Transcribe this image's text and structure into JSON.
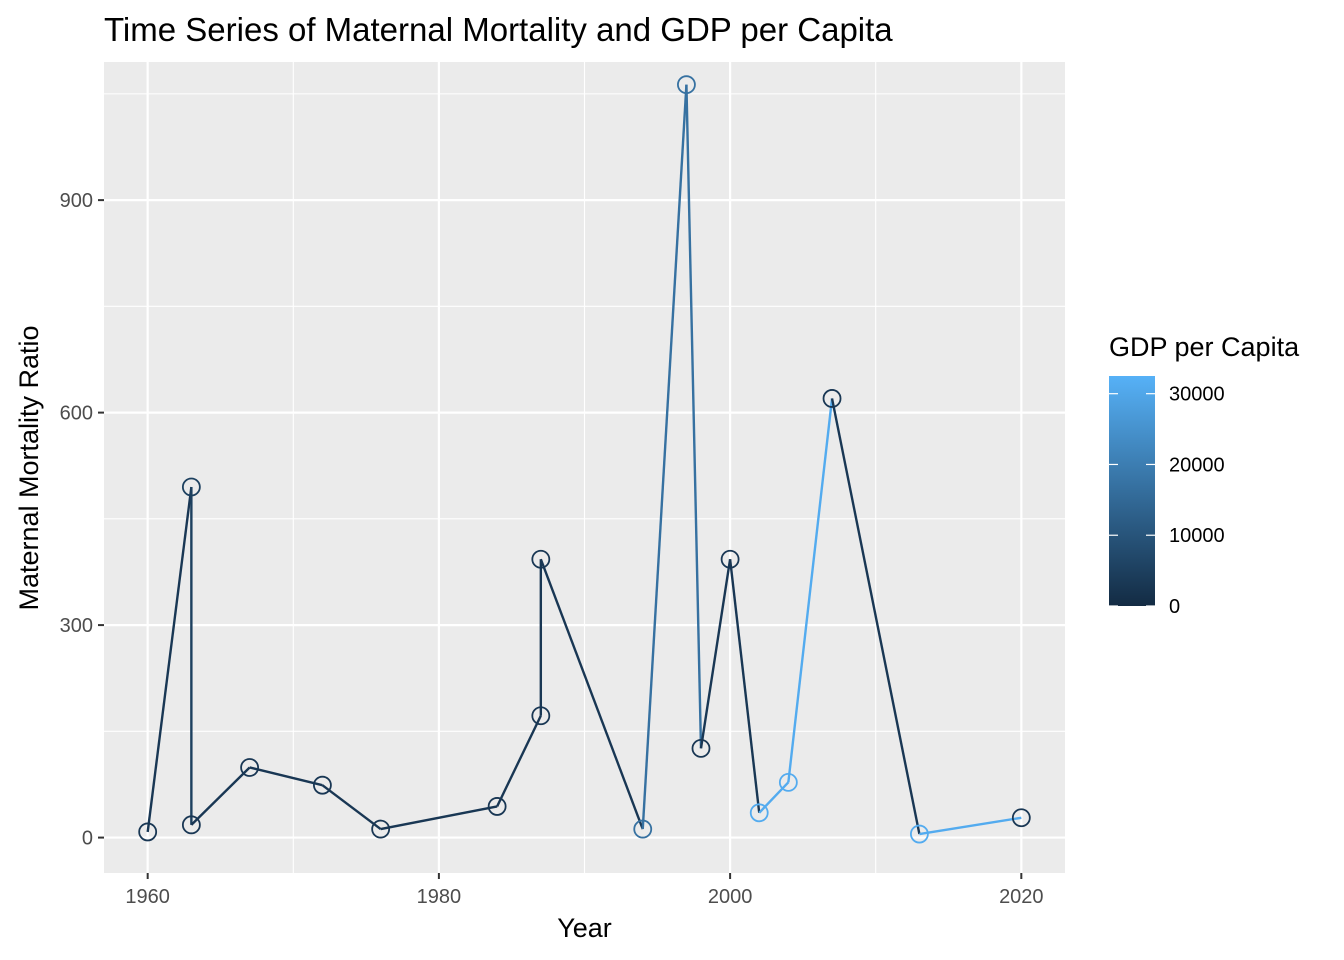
{
  "chart_data": {
    "type": "line",
    "title": "Time Series of Maternal Mortality and GDP per Capita",
    "xlabel": "Year",
    "ylabel": "Maternal Mortality Ratio",
    "xlim": [
      1957,
      2023
    ],
    "ylim": [
      -50,
      1095
    ],
    "x_ticks": [
      1960,
      1980,
      2000,
      2020
    ],
    "x_tick_labels": [
      "1960",
      "1980",
      "2000",
      "2020"
    ],
    "y_ticks": [
      0,
      300,
      600,
      900
    ],
    "y_tick_labels": [
      "0",
      "300",
      "600",
      "900"
    ],
    "grid": true,
    "series": [
      {
        "x": [
          1960,
          1963,
          1963,
          1967,
          1972,
          1976,
          1984,
          1987,
          1987,
          1994,
          1997,
          1998,
          2000,
          2002,
          2004,
          2007,
          2013,
          2020
        ],
        "y": [
          8,
          495,
          18,
          99,
          74,
          12,
          44,
          172,
          393,
          12,
          1063,
          126,
          393,
          35,
          78,
          620,
          5,
          28
        ],
        "gdp_per_capita": [
          3000,
          5000,
          3000,
          3000,
          3000,
          3000,
          3000,
          3000,
          3000,
          17000,
          17000,
          3000,
          3000,
          31000,
          31000,
          3000,
          31000,
          3000
        ]
      }
    ],
    "legend": {
      "title": "GDP per Capita",
      "position": "right",
      "type": "colorbar",
      "range": [
        0,
        32500
      ],
      "ticks": [
        0,
        10000,
        20000,
        30000
      ],
      "tick_labels": [
        "0",
        "10000",
        "20000",
        "30000"
      ],
      "color_low": "#132B43",
      "color_high": "#56B1F7"
    },
    "colors": {
      "panel_background": "#EBEBEB",
      "grid_line": "#FFFFFF",
      "point_fill": "none"
    }
  }
}
